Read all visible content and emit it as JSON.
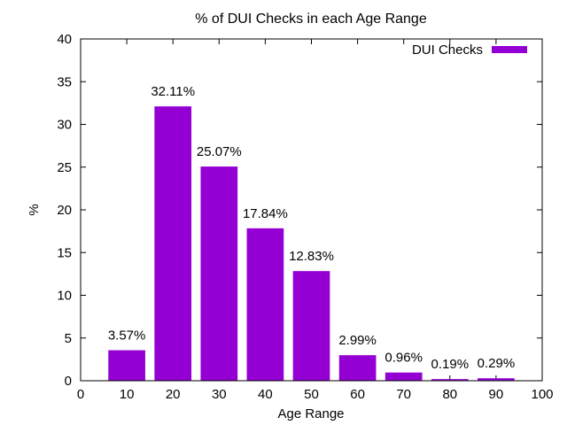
{
  "chart_data": {
    "type": "bar",
    "title": "% of DUI Checks in each Age Range",
    "xlabel": "Age Range",
    "ylabel": "%",
    "xlim": [
      0,
      100
    ],
    "ylim": [
      0,
      40
    ],
    "x_ticks": [
      "0",
      "10",
      "20",
      "30",
      "40",
      "50",
      "60",
      "70",
      "80",
      "90",
      "100"
    ],
    "y_ticks": [
      "0",
      "5",
      "10",
      "15",
      "20",
      "25",
      "30",
      "35",
      "40"
    ],
    "grid": false,
    "legend_position": "top-right",
    "series": [
      {
        "name": "DUI Checks",
        "color": "#9400d3",
        "x": [
          10,
          20,
          30,
          40,
          50,
          60,
          70,
          80,
          90
        ],
        "values": [
          3.57,
          32.11,
          25.07,
          17.84,
          12.83,
          2.99,
          0.96,
          0.19,
          0.29
        ],
        "labels": [
          "3.57%",
          "32.11%",
          "25.07%",
          "17.84%",
          "12.83%",
          "2.99%",
          "0.96%",
          "0.19%",
          "0.29%"
        ]
      }
    ]
  }
}
